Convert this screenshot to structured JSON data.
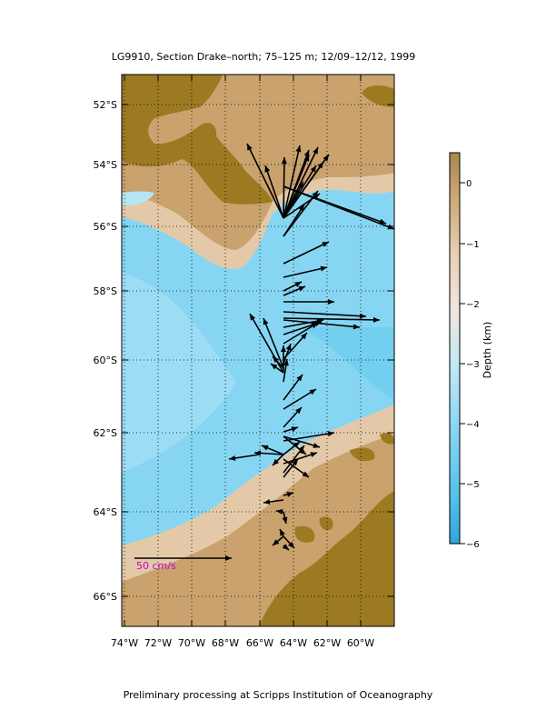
{
  "title": "LG9910, Section Drake–north; 75–125 m; 12/09–12/12, 1999",
  "footer": "Preliminary processing at Scripps Institution of Oceanography",
  "scale_label": "50 cm/s",
  "colorbar": {
    "label": "Depth (km)",
    "ticks": [
      "0",
      "−1",
      "−2",
      "−3",
      "−4",
      "−5",
      "−6"
    ]
  },
  "lon_labels": [
    "74°W",
    "72°W",
    "70°W",
    "68°W",
    "66°W",
    "64°W",
    "62°W",
    "60°W"
  ],
  "lat_labels": [
    "52°S",
    "54°S",
    "56°S",
    "58°S",
    "60°S",
    "62°S",
    "64°S",
    "66°S"
  ],
  "colors": {
    "land": "#9c7a22",
    "shelf": "#c9a26d",
    "slope": "#e4c9a8",
    "deep1": "#b6e6f6",
    "deep2": "#86d6f3",
    "deep3": "#62c8ee",
    "vector": "#000000",
    "scale_label": "#cc00cc"
  }
}
